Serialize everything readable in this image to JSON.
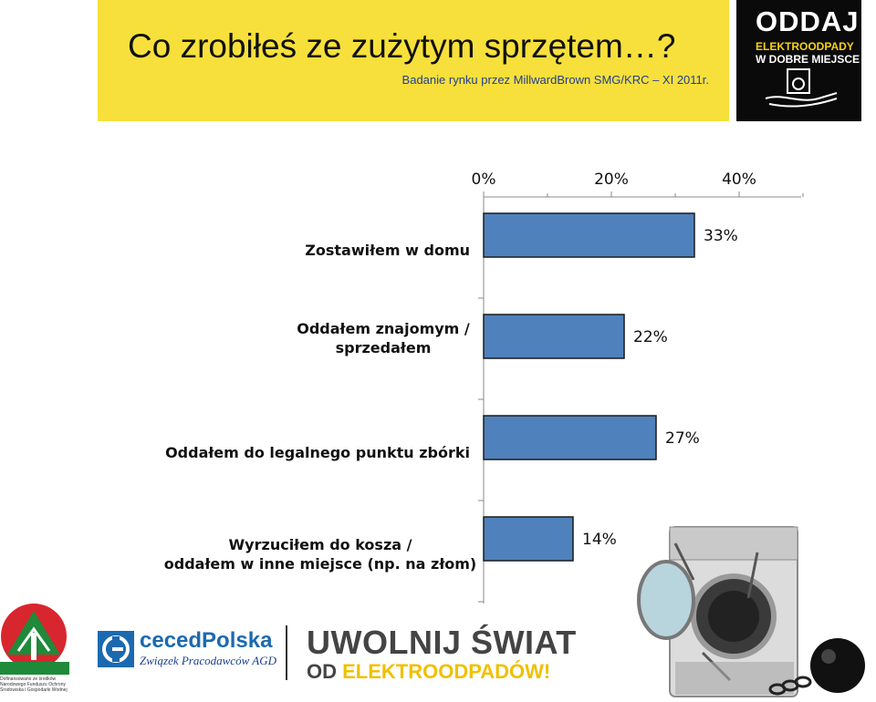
{
  "header": {
    "title": "Co zrobiłeś ze zużytym sprzętem…?",
    "subtitle": "Badanie rynku przez MillwardBrown SMG/KRC – XI 2011r."
  },
  "campaign_logo": {
    "line1": "ODDAJ",
    "line2": "ELEKTROODPADY",
    "line3": "W DOBRE MIEJSCE"
  },
  "chart_data": {
    "type": "bar",
    "orientation": "horizontal",
    "categories": [
      "Zostawiłem w domu",
      "Oddałem znajomym / sprzedałem",
      "Oddałem do legalnego punktu zbórki",
      "Wyrzuciłem do kosza / oddałem w inne miejsce (np. na złom)"
    ],
    "category_lines": [
      [
        "Zostawiłem w domu"
      ],
      [
        "Oddałem znajomym /",
        "sprzedałem"
      ],
      [
        "Oddałem do legalnego punktu zbórki"
      ],
      [
        "Wyrzuciłem do kosza /",
        "oddałem w inne miejsce (np. na złom)"
      ]
    ],
    "values": [
      33,
      22,
      27,
      14
    ],
    "value_labels": [
      "33%",
      "22%",
      "27%",
      "14%"
    ],
    "x_ticks": [
      "0%",
      "20%",
      "40%"
    ],
    "x_tick_values": [
      0,
      20,
      40
    ],
    "xlim": [
      0,
      50
    ],
    "x_axis_position": "top",
    "grid": false,
    "bar_color": "#4f81bd",
    "title": "",
    "xlabel": "",
    "ylabel": ""
  },
  "footer": {
    "nf_caption": "Dofinansowano ze środków Narodowego Funduszu Ochrony Środowiska i Gospodarki Wodnej",
    "ceced_name": "cecedPolska",
    "ceced_sub": "Związek Pracodawców AGD",
    "slogan_line1": "UWOLNIJ ŚWIAT",
    "slogan_od": "OD",
    "slogan_elektro": "ELEKTROODPADÓW!"
  },
  "colors": {
    "banner": "#f7e03c",
    "subtitle": "#1f3f8f",
    "bar": "#4f81bd",
    "accent_yellow": "#f0c000"
  },
  "icons": [
    "washing-machine-illustration",
    "ball-and-chain-illustration",
    "nfosigw-logo-icon",
    "ceced-logo-icon"
  ]
}
